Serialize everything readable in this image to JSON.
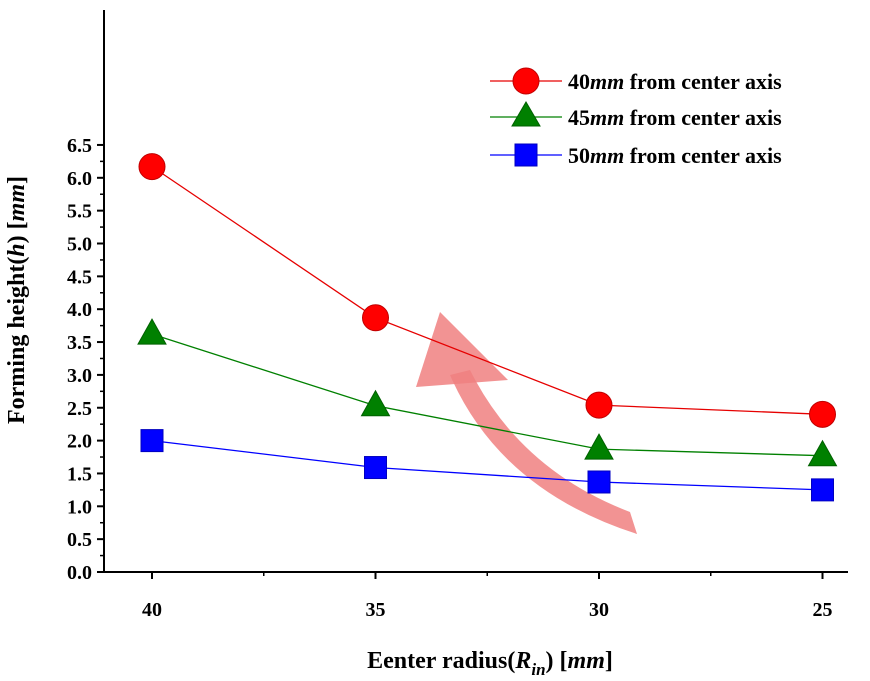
{
  "chart_data": {
    "type": "line",
    "xlabel": {
      "prefix": "Eenter radius(",
      "var": "R",
      "sub": "in",
      "suffix": ") [",
      "unit": "mm",
      "end": "]"
    },
    "ylabel": {
      "prefix": "Forming height(",
      "var": "h",
      "suffix": ") [",
      "unit": "mm",
      "end": "]"
    },
    "categories": [
      "40",
      "35",
      "30",
      "25"
    ],
    "yticks": [
      "0.0",
      "0.5",
      "1.0",
      "1.5",
      "2.0",
      "2.5",
      "3.0",
      "3.5",
      "4.0",
      "4.5",
      "5.0",
      "5.5",
      "6.0",
      "6.5"
    ],
    "ylim": [
      0,
      6.5
    ],
    "legend_position": "top-right",
    "series": [
      {
        "num": "40",
        "unit": "mm",
        "rest": " from center axis",
        "color": "#e60000",
        "marker": "circle",
        "values": [
          6.17,
          3.87,
          2.54,
          2.4
        ]
      },
      {
        "num": "45",
        "unit": "mm",
        "rest": " from center axis",
        "color": "#008000",
        "marker": "triangle",
        "values": [
          3.62,
          2.53,
          1.87,
          1.77
        ]
      },
      {
        "num": "50",
        "unit": "mm",
        "rest": " from center axis",
        "color": "#0000ff",
        "marker": "square",
        "values": [
          2.0,
          1.59,
          1.37,
          1.25
        ]
      }
    ],
    "annotation": {
      "shape": "curved-arrow",
      "color": "#f08080"
    }
  }
}
